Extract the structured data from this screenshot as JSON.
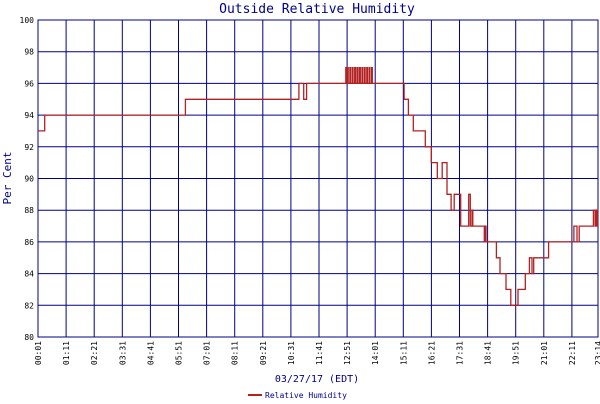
{
  "chart_data": {
    "type": "line",
    "title": "Outside Relative Humidity",
    "ylabel": "Per Cent",
    "xlabel": "03/27/17 (EDT)",
    "ylim": [
      80,
      100
    ],
    "yticks": [
      80,
      82,
      84,
      86,
      88,
      90,
      92,
      94,
      96,
      98,
      100
    ],
    "xticks": [
      "00:01",
      "01:11",
      "02:21",
      "03:31",
      "04:41",
      "05:51",
      "07:01",
      "08:11",
      "09:21",
      "10:31",
      "11:41",
      "12:51",
      "14:01",
      "15:11",
      "16:21",
      "17:31",
      "18:41",
      "19:51",
      "21:01",
      "22:11",
      "23:14"
    ],
    "grid": true,
    "legend_position": "bottom-center",
    "colors": {
      "grid": "#00008b",
      "line": "#b22222",
      "text": "#00008b"
    },
    "series": [
      {
        "name": "Relative Humidity",
        "x_hours": [
          0,
          0.23,
          0.28,
          6.07,
          6.12,
          10.78,
          10.83,
          10.98,
          11.03,
          11.1,
          11.15,
          11.3,
          12.75,
          12.78,
          12.82,
          12.85,
          12.88,
          12.95,
          12.98,
          13.05,
          13.08,
          13.15,
          13.18,
          13.25,
          13.28,
          13.35,
          13.38,
          13.45,
          13.48,
          13.55,
          13.58,
          13.65,
          13.68,
          13.75,
          13.78,
          13.85,
          13.88,
          14.2,
          15.17,
          15.2,
          15.35,
          15.38,
          15.55,
          15.58,
          16.05,
          16.08,
          16.3,
          16.33,
          16.55,
          16.58,
          16.75,
          16.78,
          16.95,
          16.98,
          17.12,
          17.15,
          17.25,
          17.28,
          17.52,
          17.55,
          17.85,
          17.88,
          17.92,
          17.95,
          17.98,
          18.02,
          18.05,
          18.5,
          18.53,
          18.57,
          18.6,
          19.0,
          19.03,
          19.15,
          19.18,
          19.4,
          19.43,
          19.6,
          19.63,
          19.9,
          19.93,
          20.2,
          20.23,
          20.37,
          20.4,
          20.48,
          20.51,
          20.55,
          20.58,
          20.62,
          20.65,
          21.0,
          21.03,
          21.2,
          21.23,
          22.1,
          22.13,
          22.25,
          22.28,
          22.38,
          22.41,
          22.47,
          22.5,
          23.03,
          23.06,
          23.1,
          23.13,
          23.15,
          23.18,
          23.2,
          23.23
        ],
        "values": [
          93,
          93,
          94,
          94,
          95,
          95,
          96,
          96,
          95,
          95,
          96,
          96,
          96,
          97,
          96,
          97,
          96,
          97,
          96,
          97,
          96,
          97,
          96,
          97,
          96,
          97,
          96,
          97,
          96,
          97,
          96,
          97,
          96,
          97,
          96,
          97,
          96,
          96,
          96,
          95,
          95,
          94,
          94,
          93,
          93,
          92,
          92,
          91,
          91,
          90,
          90,
          91,
          91,
          89,
          89,
          88,
          88,
          89,
          89,
          87,
          87,
          89,
          89,
          87,
          87,
          88,
          87,
          87,
          86,
          87,
          86,
          86,
          85,
          85,
          84,
          84,
          83,
          83,
          82,
          82,
          83,
          83,
          84,
          84,
          85,
          85,
          84,
          84,
          85,
          85,
          85,
          85,
          85,
          86,
          86,
          86,
          86,
          87,
          87,
          86,
          86,
          87,
          87,
          87,
          88,
          88,
          87,
          87,
          88,
          88,
          87
        ]
      }
    ]
  }
}
